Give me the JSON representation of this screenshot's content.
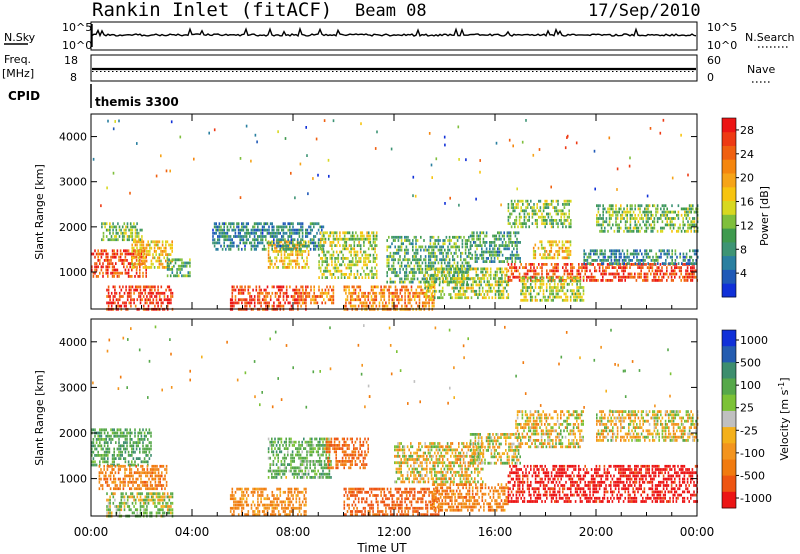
{
  "header": {
    "station": "Rankin Inlet (fitACF)",
    "beam": "Beam 08",
    "date": "17/Sep/2010"
  },
  "noise_panel": {
    "left_label": "N.Sky",
    "left_ticks": [
      "10^5",
      "10^0"
    ],
    "right_ticks": [
      "10^5",
      "10^0"
    ],
    "right_label": "N.Search"
  },
  "freq_panel": {
    "left_label_top": "Freq.",
    "left_label_unit": "[MHz]",
    "left_ticks": [
      "18",
      "8"
    ],
    "right_ticks": [
      "60",
      "0"
    ],
    "right_label": "Nave"
  },
  "cpid": {
    "label": "CPID",
    "value": "themis 3300"
  },
  "colors": {
    "power_scale": [
      "#1030d8",
      "#1f59b7",
      "#2a7fa0",
      "#3d9474",
      "#3f9a4e",
      "#7fbf3c",
      "#d8d820",
      "#f7c410",
      "#f6a418",
      "#f5860e",
      "#f06010",
      "#ee3a14",
      "#ec1515"
    ],
    "velocity_scale": [
      "#1030d8",
      "#245cb0",
      "#3d8e6e",
      "#56a84a",
      "#7cc236",
      "#c0c0c0",
      "#f4b01a",
      "#f3941e",
      "#f17b10",
      "#ee5512",
      "#ec1515"
    ]
  },
  "chart_data": [
    {
      "type": "heatmap",
      "title": "Power",
      "ylabel": "Slant Range [km]",
      "xlabel": "Time UT",
      "ylim": [
        180,
        4500
      ],
      "xlim": [
        0,
        24
      ],
      "x_tick_labels": [
        "00:00",
        "04:00",
        "08:00",
        "12:00",
        "16:00",
        "20:00",
        "00:00"
      ],
      "y_ticks": [
        1000,
        2000,
        3000,
        4000
      ],
      "colorbar": {
        "label": "Power [dB]",
        "ticks": [
          4,
          8,
          12,
          16,
          20,
          24,
          28
        ],
        "range": [
          0,
          30
        ]
      },
      "regions": [
        {
          "t0": 0.0,
          "t1": 2.2,
          "r0": 900,
          "r1": 1500,
          "level": 26
        },
        {
          "t0": 1.6,
          "t1": 3.2,
          "r0": 1100,
          "r1": 1700,
          "level": 18
        },
        {
          "t0": 0.4,
          "t1": 2.0,
          "r0": 1700,
          "r1": 2100,
          "level": 12
        },
        {
          "t0": 0.6,
          "t1": 3.2,
          "r0": 180,
          "r1": 700,
          "level": 27
        },
        {
          "t0": 3.0,
          "t1": 3.9,
          "r0": 900,
          "r1": 1300,
          "level": 10
        },
        {
          "t0": 5.5,
          "t1": 8.5,
          "r0": 180,
          "r1": 700,
          "level": 26
        },
        {
          "t0": 8.3,
          "t1": 9.6,
          "r0": 300,
          "r1": 700,
          "level": 22
        },
        {
          "t0": 7.0,
          "t1": 8.6,
          "r0": 1100,
          "r1": 1700,
          "level": 18
        },
        {
          "t0": 4.8,
          "t1": 9.2,
          "r0": 1500,
          "r1": 2100,
          "level": 7
        },
        {
          "t0": 9.0,
          "t1": 11.3,
          "r0": 900,
          "r1": 1900,
          "level": 14
        },
        {
          "t0": 10.0,
          "t1": 13.6,
          "r0": 180,
          "r1": 700,
          "level": 22
        },
        {
          "t0": 11.7,
          "t1": 15.0,
          "r0": 800,
          "r1": 1800,
          "level": 10
        },
        {
          "t0": 13.2,
          "t1": 16.5,
          "r0": 400,
          "r1": 1100,
          "level": 14
        },
        {
          "t0": 15.0,
          "t1": 17.0,
          "r0": 1200,
          "r1": 1900,
          "level": 9
        },
        {
          "t0": 16.5,
          "t1": 24.0,
          "r0": 800,
          "r1": 1200,
          "level": 26
        },
        {
          "t0": 17.0,
          "t1": 19.5,
          "r0": 400,
          "r1": 900,
          "level": 14
        },
        {
          "t0": 17.5,
          "t1": 19.0,
          "r0": 1300,
          "r1": 1700,
          "level": 18
        },
        {
          "t0": 16.5,
          "t1": 19.0,
          "r0": 2000,
          "r1": 2600,
          "level": 12
        },
        {
          "t0": 20.0,
          "t1": 24.0,
          "r0": 1900,
          "r1": 2500,
          "level": 12
        },
        {
          "t0": 19.5,
          "t1": 24.0,
          "r0": 1200,
          "r1": 1500,
          "level": 7
        }
      ]
    },
    {
      "type": "heatmap",
      "title": "Velocity",
      "ylabel": "Slant Range [km]",
      "xlabel": "Time UT",
      "ylim": [
        180,
        4500
      ],
      "xlim": [
        0,
        24
      ],
      "x_tick_labels": [
        "00:00",
        "04:00",
        "08:00",
        "12:00",
        "16:00",
        "20:00",
        "00:00"
      ],
      "y_ticks": [
        1000,
        2000,
        3000,
        4000
      ],
      "colorbar": {
        "label": "Velocity [m s^-1]",
        "tick_labels": [
          "1000",
          "500",
          "100",
          "25",
          "-25",
          "-100",
          "-500",
          "-1000"
        ]
      },
      "regions": [
        {
          "t0": 0.0,
          "t1": 2.4,
          "r0": 1300,
          "r1": 2100,
          "level": 200
        },
        {
          "t0": 0.3,
          "t1": 3.0,
          "r0": 800,
          "r1": 1300,
          "level": -150
        },
        {
          "t0": 0.6,
          "t1": 3.2,
          "r0": 180,
          "r1": 700,
          "level": 80
        },
        {
          "t0": 5.5,
          "t1": 8.5,
          "r0": 180,
          "r1": 800,
          "level": -120
        },
        {
          "t0": 7.0,
          "t1": 9.5,
          "r0": 1000,
          "r1": 1900,
          "level": 150
        },
        {
          "t0": 9.3,
          "t1": 11.0,
          "r0": 1200,
          "r1": 1900,
          "level": -250
        },
        {
          "t0": 10.0,
          "t1": 13.8,
          "r0": 180,
          "r1": 800,
          "level": -300
        },
        {
          "t0": 12.0,
          "t1": 15.5,
          "r0": 900,
          "r1": 1800,
          "level": 0
        },
        {
          "t0": 13.5,
          "t1": 16.5,
          "r0": 300,
          "r1": 900,
          "level": -150
        },
        {
          "t0": 16.5,
          "t1": 24.0,
          "r0": 500,
          "r1": 1300,
          "level": -600
        },
        {
          "t0": 16.8,
          "t1": 19.5,
          "r0": 1700,
          "r1": 2500,
          "level": 0
        },
        {
          "t0": 20.0,
          "t1": 24.0,
          "r0": 1800,
          "r1": 2500,
          "level": 5
        },
        {
          "t0": 15.0,
          "t1": 17.0,
          "r0": 1300,
          "r1": 2000,
          "level": 40
        }
      ]
    }
  ]
}
